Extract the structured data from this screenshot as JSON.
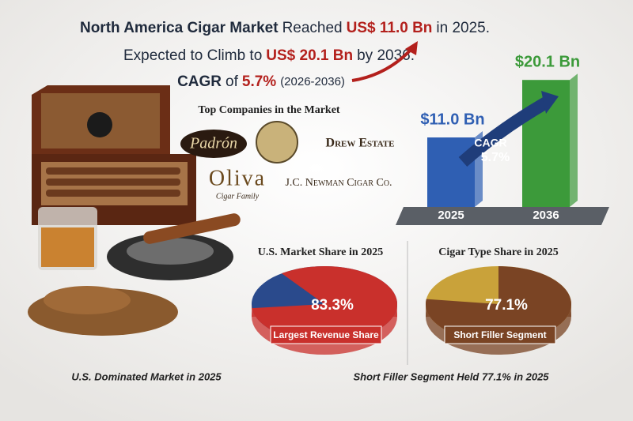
{
  "headline": {
    "line1": [
      "North America Cigar Market",
      "Reached",
      "US$ 11.0 Bn",
      "in 2025."
    ],
    "line2": [
      "Expected to Climb to",
      "US$ 20.1 Bn",
      "by 2036."
    ],
    "line3": [
      "CAGR",
      "of",
      "5.7%",
      "(2026-2036)"
    ]
  },
  "companies": {
    "title": "Top Companies in the Market",
    "logos": [
      "Padrón",
      "Drew Estate",
      "Oliva",
      "Cigar Family",
      "J.C. Newman Cigar Co."
    ]
  },
  "growth_chart": {
    "type": "bar",
    "categories": [
      "2025",
      "2036"
    ],
    "values": [
      11.0,
      20.1
    ],
    "value_labels": [
      "$11.0 Bn",
      "$20.1 Bn"
    ],
    "colors": [
      "#2f5fb3",
      "#3c9a3a"
    ],
    "annotation": [
      "CAGR",
      "5.7%"
    ]
  },
  "us_share": {
    "type": "pie",
    "title": "U.S. Market Share in 2025",
    "value": 83.3,
    "value_label": "83.3%",
    "label": "Largest Revenue Share",
    "colors": [
      "#c9302c",
      "#2a4a8c"
    ],
    "caption": "U.S. Dominated Market in 2025"
  },
  "type_share": {
    "type": "pie",
    "title": "Cigar Type Share in 2025",
    "value": 77.1,
    "value_label": "77.1%",
    "label": "Short Filler Segment",
    "colors": [
      "#7a4424",
      "#c9a23a"
    ],
    "caption": "Short Filler Segment Held 77.1% in 2025"
  }
}
